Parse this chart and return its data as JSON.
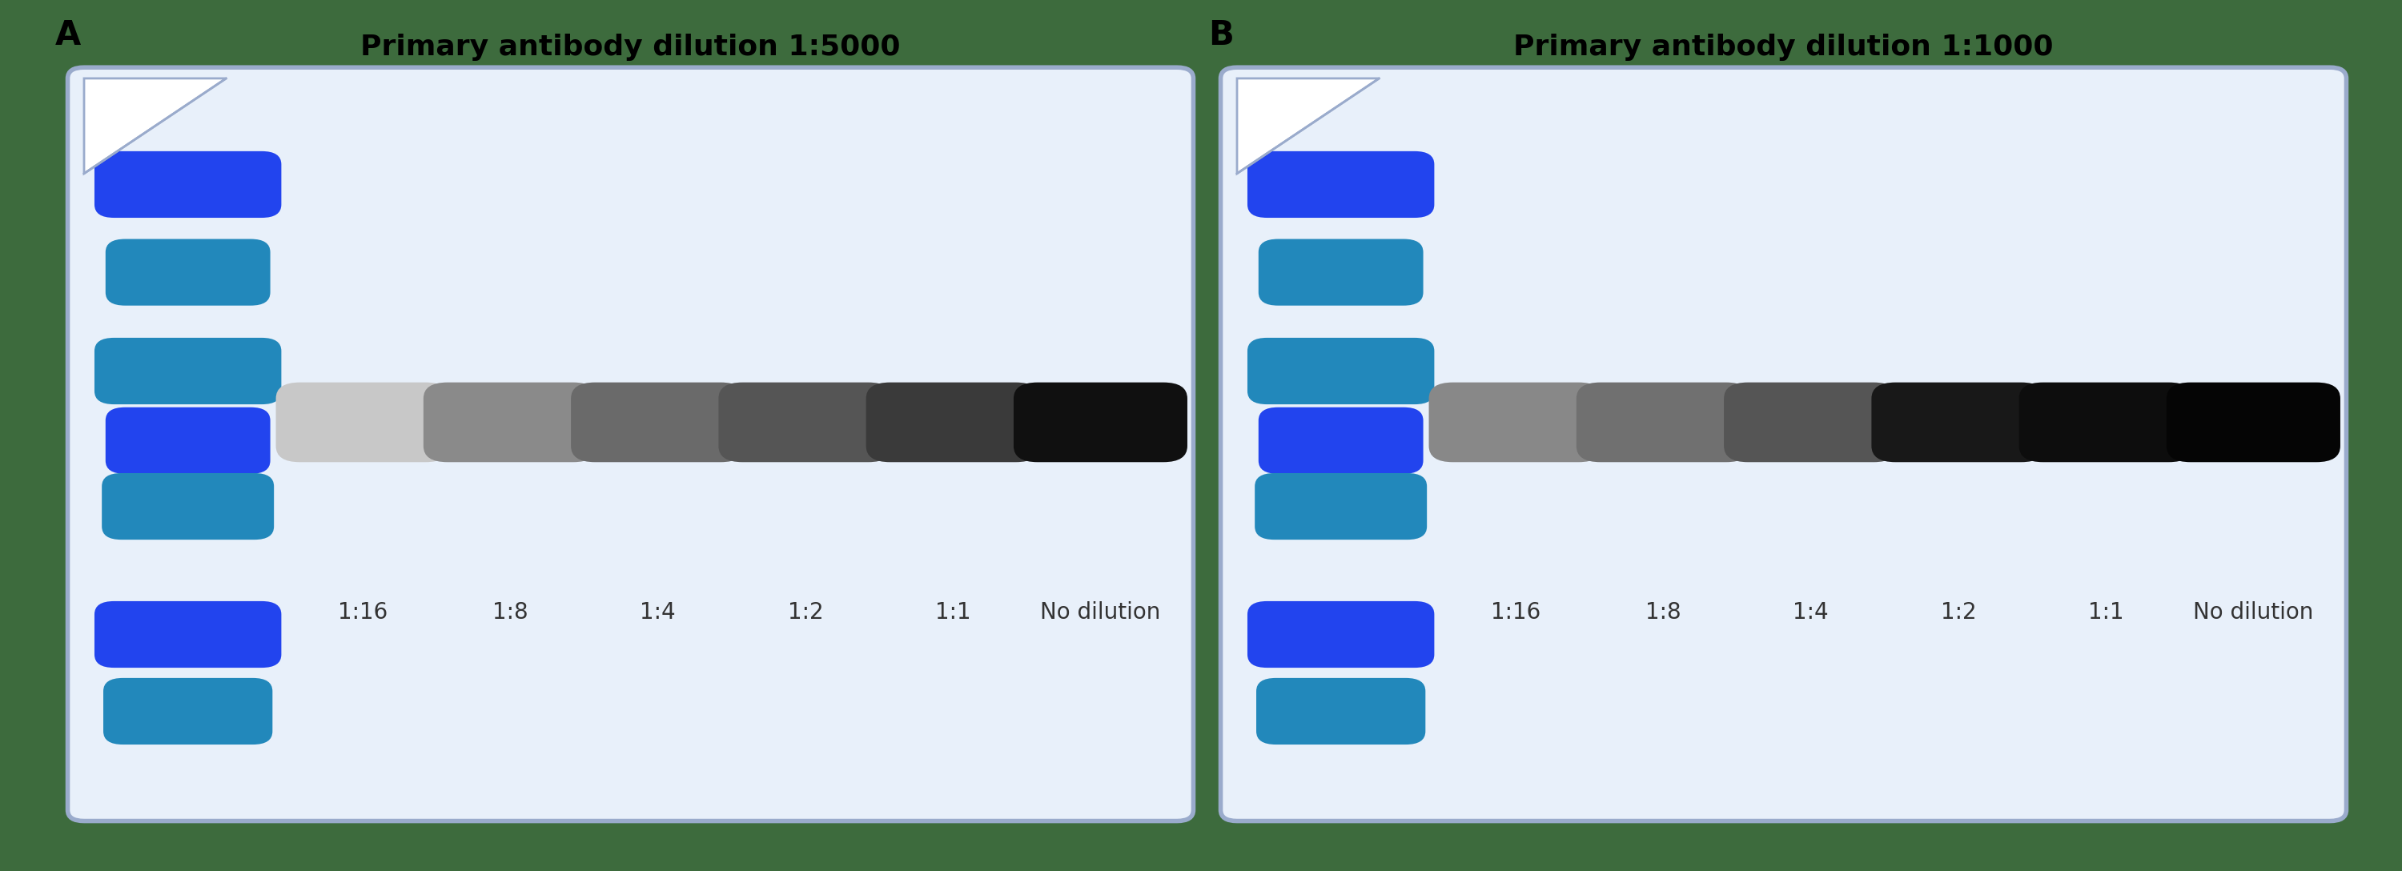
{
  "panels": [
    {
      "label": "A",
      "title": "Primary antibody dilution 1:5000",
      "band_colors": [
        "#c8c8c8",
        "#8a8a8a",
        "#6a6a6a",
        "#555555",
        "#3a3a3a",
        "#101010"
      ],
      "dilution_labels": [
        "1:16",
        "1:8",
        "1:4",
        "1:2",
        "1:1",
        "No dilution"
      ]
    },
    {
      "label": "B",
      "title": "Primary antibody dilution 1:1000",
      "band_colors": [
        "#888888",
        "#707070",
        "#555555",
        "#181818",
        "#0d0d0d",
        "#050505"
      ],
      "dilution_labels": [
        "1:16",
        "1:8",
        "1:4",
        "1:2",
        "1:1",
        "No dilution"
      ]
    }
  ],
  "outer_bg": "#3d6b3d",
  "membrane_bg": "#e8f0fa",
  "membrane_border": "#9aabcc",
  "ladder_colors": [
    "#2244ee",
    "#2288bb",
    "#2288bb",
    "#2244ee",
    "#2288bb",
    "#2244ee",
    "#2288bb"
  ],
  "title_fontsize": 26,
  "label_fontsize": 30,
  "tick_fontsize": 20
}
